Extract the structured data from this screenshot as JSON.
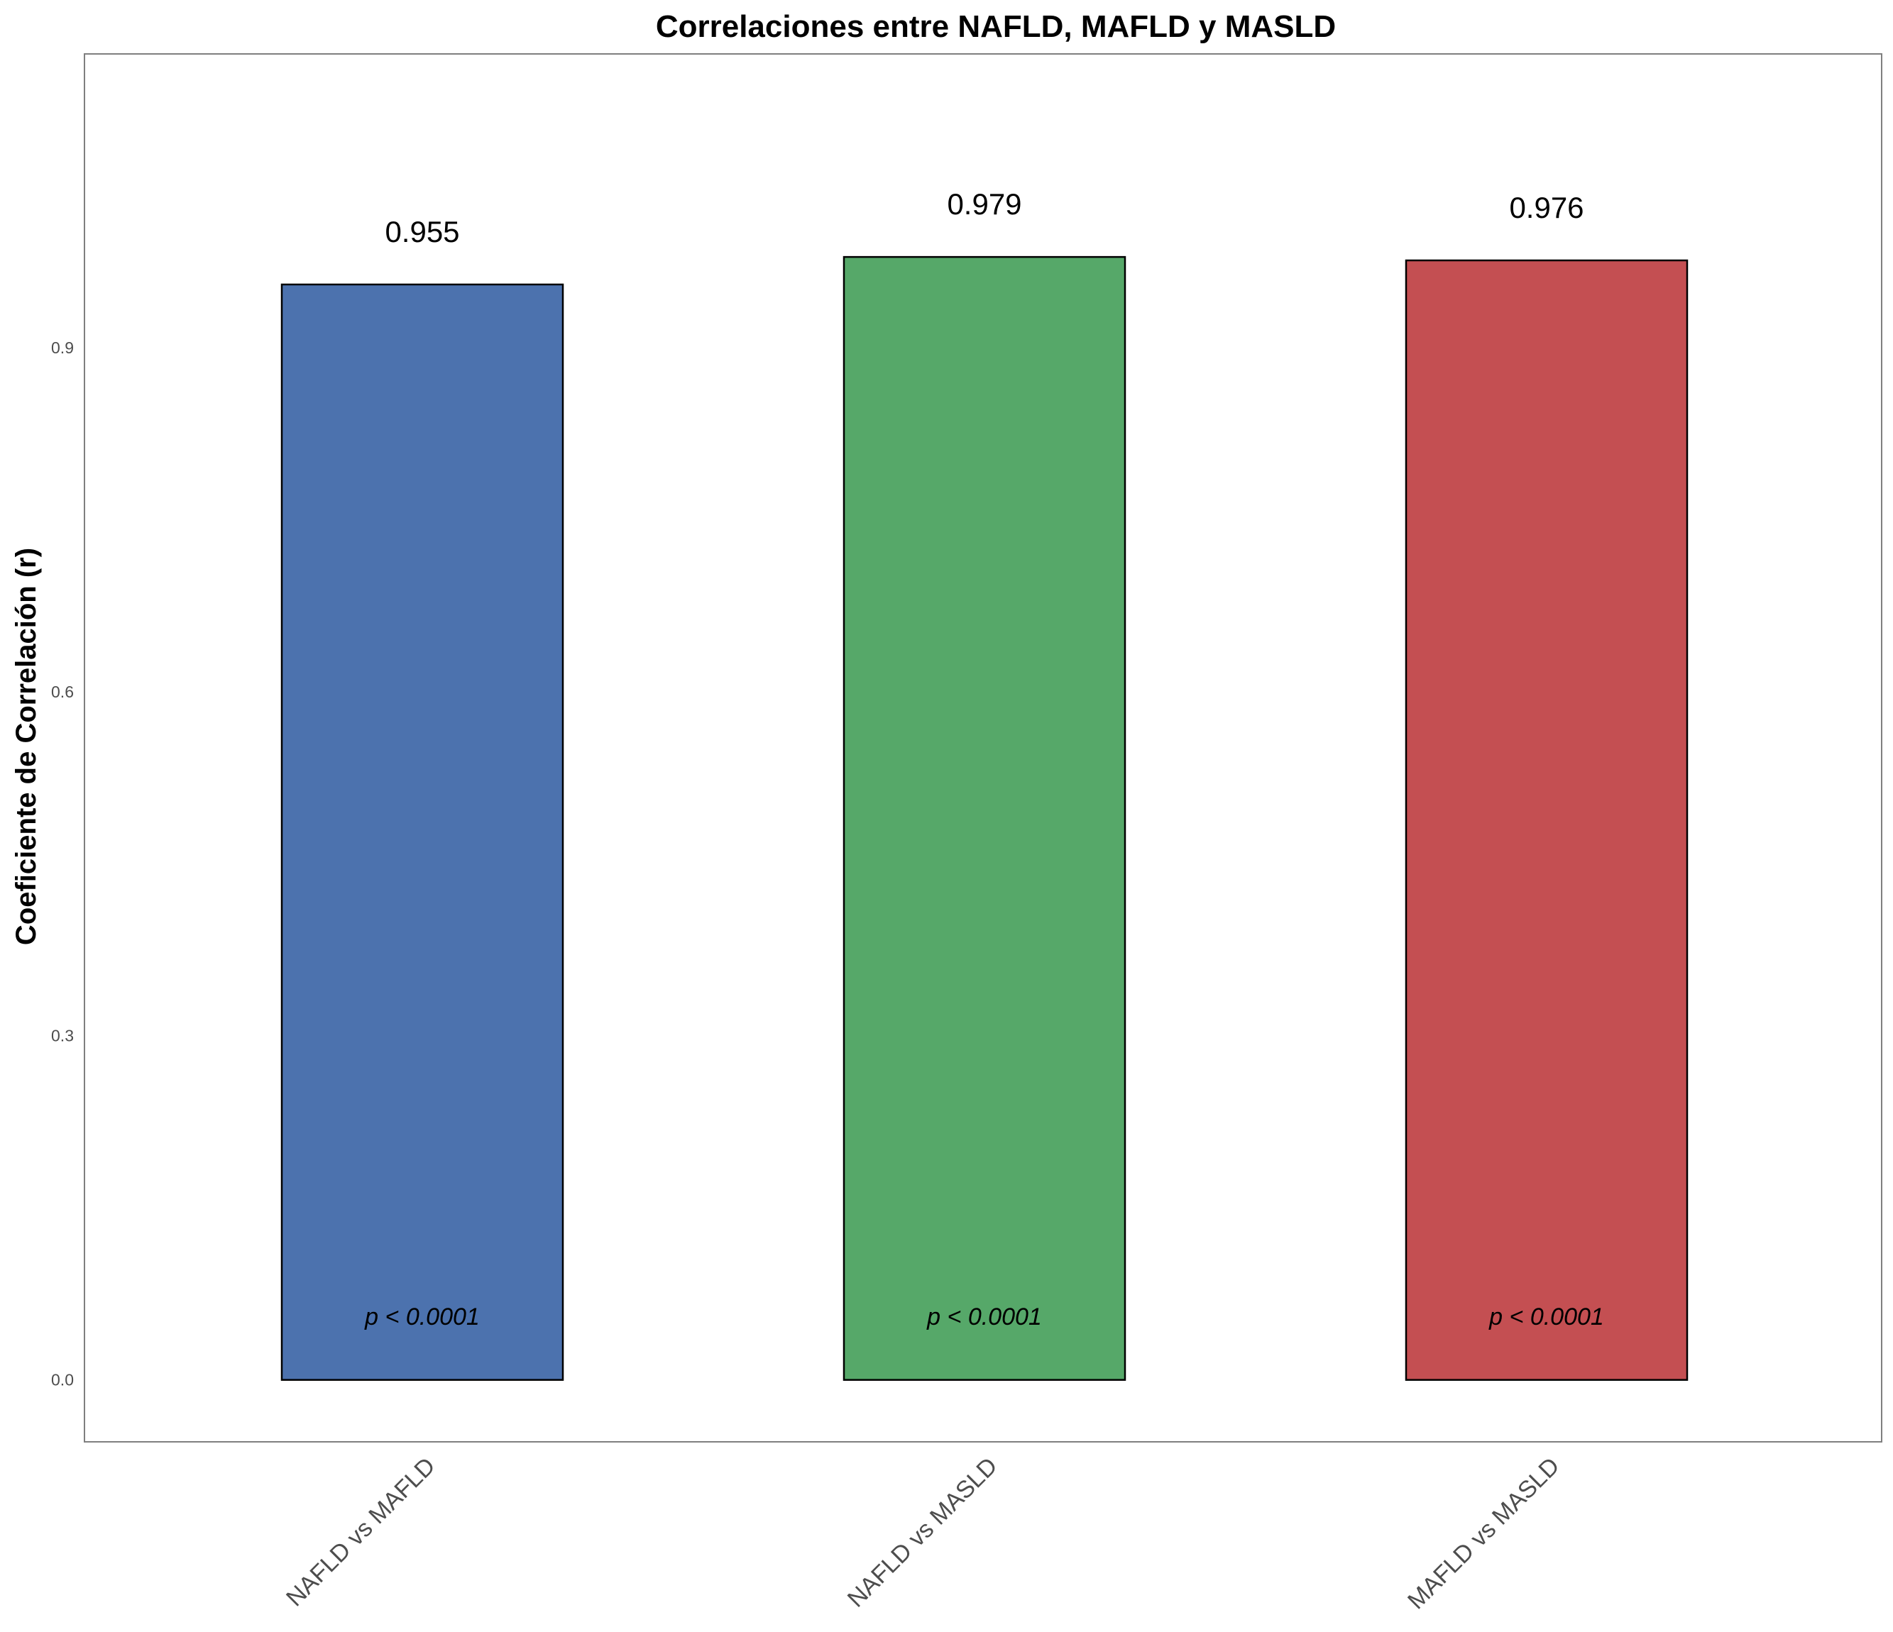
{
  "chart_data": {
    "type": "bar",
    "title": "Correlaciones entre NAFLD, MAFLD y MASLD",
    "ylabel": "Coeficiente de Correlación (r)",
    "xlabel": "",
    "categories": [
      "NAFLD vs MAFLD",
      "NAFLD vs MASLD",
      "MAFLD vs MASLD"
    ],
    "values": [
      0.955,
      0.979,
      0.976
    ],
    "value_labels": [
      "0.955",
      "0.979",
      "0.976"
    ],
    "annotations": [
      "p < 0.0001",
      "p < 0.0001",
      "p < 0.0001"
    ],
    "yticks": [
      0.0,
      0.3,
      0.6,
      0.9
    ],
    "ytick_labels": [
      "0.0",
      "0.3",
      "0.6",
      "0.9"
    ],
    "ylim": [
      -0.054,
      1.156
    ],
    "colors": [
      "#4c72ae",
      "#56a869",
      "#c44f52"
    ],
    "grid": false,
    "legend": "none"
  }
}
